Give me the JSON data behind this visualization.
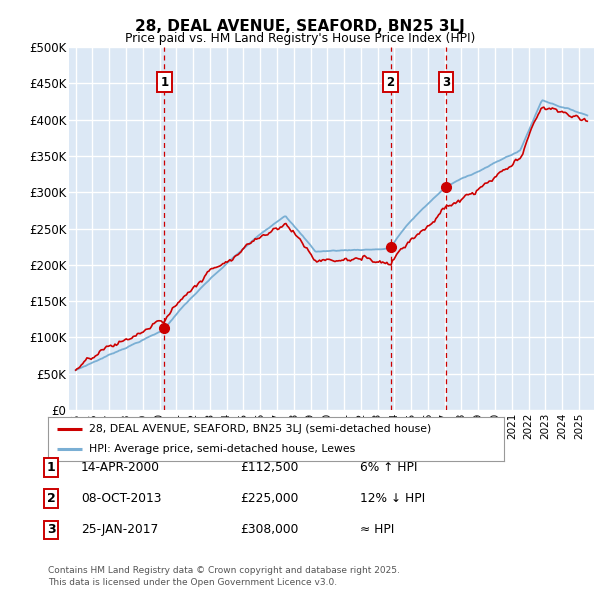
{
  "title": "28, DEAL AVENUE, SEAFORD, BN25 3LJ",
  "subtitle": "Price paid vs. HM Land Registry's House Price Index (HPI)",
  "ylabel_ticks": [
    "£0",
    "£50K",
    "£100K",
    "£150K",
    "£200K",
    "£250K",
    "£300K",
    "£350K",
    "£400K",
    "£450K",
    "£500K"
  ],
  "ytick_values": [
    0,
    50000,
    100000,
    150000,
    200000,
    250000,
    300000,
    350000,
    400000,
    450000,
    500000
  ],
  "background_color": "#dce8f5",
  "grid_color": "#ffffff",
  "red_line_color": "#cc0000",
  "blue_line_color": "#7aafd4",
  "transactions": [
    {
      "num": 1,
      "date": "14-APR-2000",
      "price": 112500,
      "year": 2000.28
    },
    {
      "num": 2,
      "date": "08-OCT-2013",
      "price": 225000,
      "year": 2013.77
    },
    {
      "num": 3,
      "date": "25-JAN-2017",
      "price": 308000,
      "year": 2017.07
    }
  ],
  "legend_line1": "28, DEAL AVENUE, SEAFORD, BN25 3LJ (semi-detached house)",
  "legend_line2": "HPI: Average price, semi-detached house, Lewes",
  "footnote": "Contains HM Land Registry data © Crown copyright and database right 2025.\nThis data is licensed under the Open Government Licence v3.0.",
  "table_rows": [
    {
      "num": 1,
      "date": "14-APR-2000",
      "price": "£112,500",
      "rel": "6% ↑ HPI"
    },
    {
      "num": 2,
      "date": "08-OCT-2013",
      "price": "£225,000",
      "rel": "12% ↓ HPI"
    },
    {
      "num": 3,
      "date": "25-JAN-2017",
      "price": "£308,000",
      "rel": "≈ HPI"
    }
  ]
}
